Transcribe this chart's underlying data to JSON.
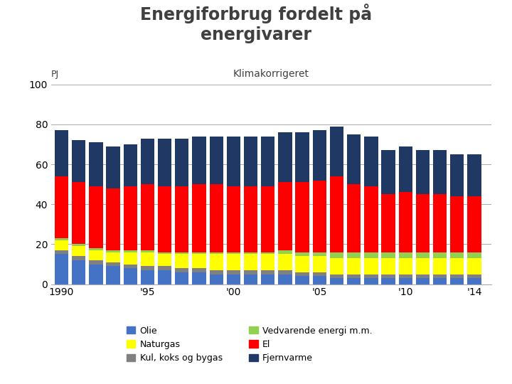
{
  "title": "Energiforbrug fordelt på\nenergivarer",
  "subtitle": "Klimakorrigeret",
  "pj_label": "PJ",
  "years": [
    1990,
    1991,
    1992,
    1993,
    1994,
    1995,
    1996,
    1997,
    1998,
    1999,
    2000,
    2001,
    2002,
    2003,
    2004,
    2005,
    2006,
    2007,
    2008,
    2009,
    2010,
    2011,
    2012,
    2013,
    2014
  ],
  "xtick_labels": [
    "1990",
    "'95",
    "'00",
    "'05",
    "'10",
    "'14"
  ],
  "xtick_positions": [
    1990,
    1995,
    2000,
    2005,
    2010,
    2014
  ],
  "olie": [
    15,
    12,
    10,
    9,
    8,
    7,
    7,
    6,
    6,
    5,
    5,
    5,
    5,
    5,
    4,
    4,
    3,
    3,
    3,
    3,
    3,
    3,
    3,
    3,
    3
  ],
  "kul": [
    2,
    2,
    2,
    2,
    2,
    2,
    2,
    2,
    2,
    2,
    2,
    2,
    2,
    2,
    2,
    2,
    2,
    2,
    2,
    2,
    2,
    2,
    2,
    2,
    2
  ],
  "naturgas": [
    5,
    5,
    5,
    5,
    6,
    7,
    6,
    7,
    7,
    8,
    8,
    8,
    8,
    8,
    8,
    8,
    8,
    8,
    8,
    8,
    8,
    8,
    8,
    8,
    8
  ],
  "vedvarende": [
    1,
    1,
    1,
    1,
    1,
    1,
    1,
    1,
    1,
    1,
    1,
    1,
    1,
    2,
    2,
    2,
    3,
    3,
    3,
    3,
    3,
    3,
    3,
    3,
    3
  ],
  "el": [
    31,
    31,
    31,
    31,
    32,
    33,
    33,
    33,
    34,
    34,
    33,
    33,
    33,
    34,
    35,
    36,
    38,
    34,
    33,
    29,
    30,
    29,
    29,
    28,
    28
  ],
  "fjernvarme": [
    23,
    21,
    22,
    21,
    21,
    23,
    24,
    24,
    24,
    24,
    25,
    25,
    25,
    25,
    25,
    25,
    25,
    25,
    25,
    22,
    23,
    22,
    22,
    21,
    21
  ],
  "colors": {
    "olie": "#4472C4",
    "kul": "#808080",
    "naturgas": "#FFFF00",
    "vedvarende": "#92D050",
    "el": "#FF0000",
    "fjernvarme": "#1F3864"
  },
  "ylim": [
    0,
    100
  ],
  "background_color": "#FFFFFF",
  "title_color": "#404040",
  "subtitle_color": "#404040"
}
